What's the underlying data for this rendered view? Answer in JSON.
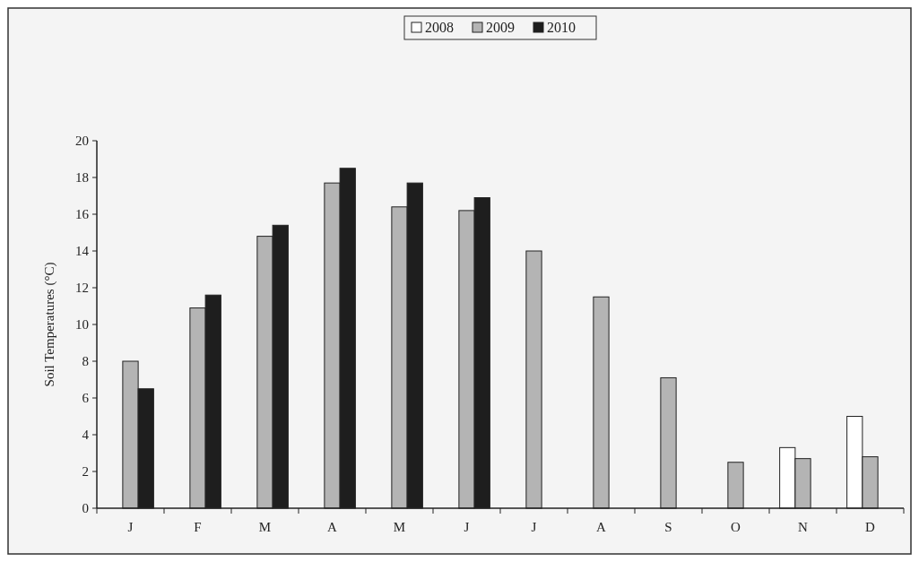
{
  "chart_data": {
    "type": "bar",
    "ylabel": "Soil Temperatures (°C)",
    "categories": [
      "J",
      "F",
      "M",
      "A",
      "M",
      "J",
      "J",
      "A",
      "S",
      "O",
      "N",
      "D"
    ],
    "series": [
      {
        "name": "2008",
        "color": "#ffffff",
        "values": [
          null,
          null,
          null,
          null,
          null,
          null,
          null,
          null,
          null,
          null,
          3.3,
          5.0
        ]
      },
      {
        "name": "2009",
        "color": "#b4b4b4",
        "values": [
          8.0,
          10.9,
          14.8,
          17.7,
          16.4,
          16.2,
          14.0,
          11.5,
          7.1,
          2.5,
          2.7,
          2.8
        ]
      },
      {
        "name": "2010",
        "color": "#1e1e1e",
        "values": [
          6.5,
          11.6,
          15.4,
          18.5,
          17.7,
          16.9,
          null,
          null,
          null,
          null,
          null,
          null
        ]
      }
    ],
    "ylim": [
      0,
      20
    ],
    "yticks": [
      0,
      2,
      4,
      6,
      8,
      10,
      12,
      14,
      16,
      18,
      20
    ],
    "grid": false,
    "legend": "top"
  }
}
